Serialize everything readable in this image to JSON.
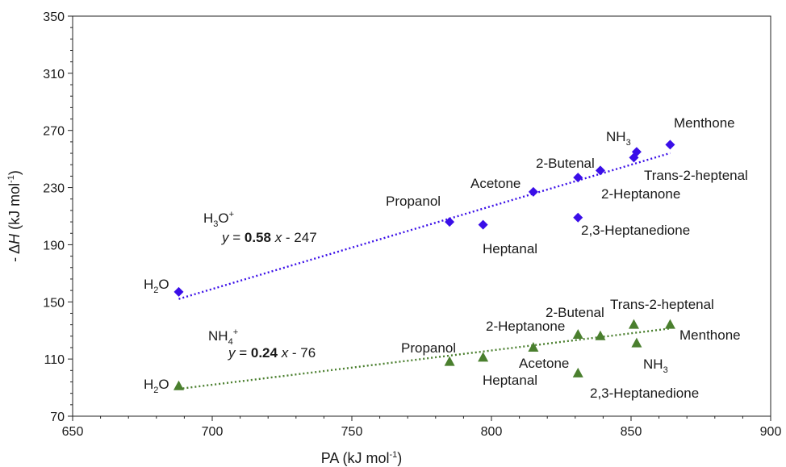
{
  "chart_data": {
    "type": "scatter",
    "title": "",
    "xlabel": "PA (kJ mol",
    "xlabel_sup": "-1",
    "xlabel_end": ")",
    "ylabel_pre": "- Δ",
    "ylabel_var": "H",
    "ylabel_mid": " (kJ mol",
    "ylabel_sup": "-1",
    "ylabel_end": ")",
    "xlim": [
      650,
      900
    ],
    "ylim": [
      70,
      350
    ],
    "x_ticks": [
      650,
      700,
      750,
      800,
      850,
      900
    ],
    "y_ticks": [
      70,
      110,
      150,
      190,
      230,
      270,
      310,
      350
    ],
    "grid": false,
    "series": [
      {
        "key": "h3o",
        "color": "#3a0ee8",
        "marker": "diamond",
        "points": [
          {
            "x": 688,
            "y": 157,
            "label": "H2O"
          },
          {
            "x": 785,
            "y": 206,
            "label": "Propanol"
          },
          {
            "x": 797,
            "y": 204,
            "label": "Heptanal"
          },
          {
            "x": 815,
            "y": 227,
            "label": "Acetone"
          },
          {
            "x": 831,
            "y": 237,
            "label": "2-Butenal"
          },
          {
            "x": 831,
            "y": 209,
            "label": "2,3-Heptanedione"
          },
          {
            "x": 839,
            "y": 242,
            "label": "2-Heptanone"
          },
          {
            "x": 851,
            "y": 251,
            "label": "Trans-2-heptenal"
          },
          {
            "x": 852,
            "y": 255,
            "label": "NH3"
          },
          {
            "x": 864,
            "y": 260,
            "label": "Menthone"
          }
        ],
        "trendline": {
          "slope": 0.58,
          "intercept": -247,
          "x_range": [
            688,
            864
          ]
        }
      },
      {
        "key": "nh4",
        "color": "#4a7f2e",
        "marker": "triangle",
        "points": [
          {
            "x": 688,
            "y": 91,
            "label": "H2O"
          },
          {
            "x": 785,
            "y": 108,
            "label": "Propanol"
          },
          {
            "x": 797,
            "y": 111,
            "label": "Heptanal"
          },
          {
            "x": 815,
            "y": 118,
            "label": "Acetone"
          },
          {
            "x": 831,
            "y": 127,
            "label": "2-Heptanone"
          },
          {
            "x": 831,
            "y": 100,
            "label": "2,3-Heptanedione"
          },
          {
            "x": 839,
            "y": 126,
            "label": "2-Butenal"
          },
          {
            "x": 851,
            "y": 134,
            "label": "Trans-2-heptenal"
          },
          {
            "x": 852,
            "y": 121,
            "label": "NH3"
          },
          {
            "x": 864,
            "y": 134,
            "label": "Menthone"
          }
        ],
        "trendline": {
          "slope": 0.24,
          "intercept": -76,
          "x_range": [
            688,
            864
          ]
        }
      }
    ]
  },
  "annotations": {
    "h3o_ion_base": "H",
    "h3o_ion_sub": "3",
    "h3o_ion_end": "O",
    "h3o_ion_sup": "+",
    "h3o_eq_y": "y",
    "h3o_eq_mid": " = ",
    "h3o_eq_slope": "0.58",
    "h3o_eq_x": " x",
    "h3o_eq_rest": " - 247",
    "nh4_ion_base": "NH",
    "nh4_ion_sub": "4",
    "nh4_ion_sup": "+",
    "nh4_eq_y": "y",
    "nh4_eq_mid": " = ",
    "nh4_eq_slope": "0.24",
    "nh4_eq_x": " x",
    "nh4_eq_rest": " - 76"
  },
  "labels": {
    "h3o": {
      "h2o_base": "H",
      "h2o_sub": "2",
      "h2o_end": "O",
      "propanol": "Propanol",
      "heptanal": "Heptanal",
      "acetone": "Acetone",
      "butenal": "2-Butenal",
      "heptanedione": "2,3-Heptanedione",
      "heptanone": "2-Heptanone",
      "heptenal": "Trans-2-heptenal",
      "nh3_base": "NH",
      "nh3_sub": "3",
      "menthone": "Menthone"
    },
    "nh4": {
      "h2o_base": "H",
      "h2o_sub": "2",
      "h2o_end": "O",
      "propanol": "Propanol",
      "heptanal": "Heptanal",
      "acetone": "Acetone",
      "heptanone": "2-Heptanone",
      "butenal": "2-Butenal",
      "heptenal": "Trans-2-heptenal",
      "menthone": "Menthone",
      "nh3_base": "NH",
      "nh3_sub": "3",
      "heptanedione": "2,3-Heptanedione"
    }
  }
}
